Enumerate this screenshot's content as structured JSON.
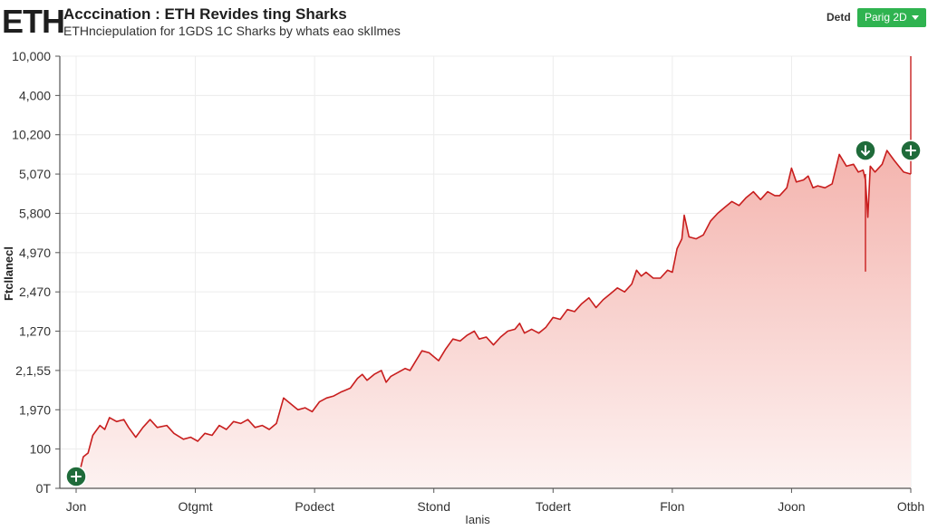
{
  "header": {
    "logo": "ETH",
    "title": "Acccination : ETH Revides ting Sharks",
    "subtitle": "ETHnciepulation for 1GDS 1C Sharks by whats eao skIlmes",
    "detail_label": "Detd",
    "range_button": "Parig 2D"
  },
  "colors": {
    "line": "#c81e1e",
    "fill_top": "#f4b4ae",
    "fill_bottom": "#fdf2f1",
    "marker": "#1f6b3a",
    "button": "#2fb350",
    "grid": "#ececec",
    "axis": "#555555"
  },
  "chart_data": {
    "type": "area",
    "title": "Acccination : ETH Revides ting Sharks",
    "subtitle": "ETHnciepulation for 1GDS 1C Sharks by whats eao skIlmes",
    "ylabel": "Ftcllanecl",
    "xlabel": "Ianis",
    "grid": true,
    "legend": "none",
    "y_tick_labels_bottom_to_top": [
      "0T",
      "100",
      "1,970",
      "2,1,55",
      "1,270",
      "2,470",
      "4,970",
      "5,800",
      "5,070",
      "10,200",
      "4,000",
      "10,000"
    ],
    "x_tick_labels": [
      "Jon",
      "Otgmt",
      "Podect",
      "Stond",
      "Todert",
      "Flon",
      "Joon",
      "Otbh"
    ],
    "value_units": "y in tick-index units (0 = bottom tick '0T', 11 = top tick '10,000'); x in tick-index units (0 = 'Jon', 7 = 'Otbh')",
    "xlim": [
      -0.13,
      7.0
    ],
    "ylim": [
      0,
      11
    ],
    "series": [
      {
        "name": "ETH",
        "points": [
          [
            0.02,
            0.3
          ],
          [
            0.06,
            0.8
          ],
          [
            0.1,
            0.9
          ],
          [
            0.14,
            1.35
          ],
          [
            0.2,
            1.6
          ],
          [
            0.24,
            1.5
          ],
          [
            0.28,
            1.8
          ],
          [
            0.34,
            1.7
          ],
          [
            0.4,
            1.75
          ],
          [
            0.44,
            1.55
          ],
          [
            0.5,
            1.3
          ],
          [
            0.56,
            1.55
          ],
          [
            0.62,
            1.75
          ],
          [
            0.68,
            1.55
          ],
          [
            0.76,
            1.6
          ],
          [
            0.82,
            1.4
          ],
          [
            0.9,
            1.25
          ],
          [
            0.96,
            1.3
          ],
          [
            1.02,
            1.2
          ],
          [
            1.08,
            1.4
          ],
          [
            1.14,
            1.35
          ],
          [
            1.2,
            1.6
          ],
          [
            1.26,
            1.5
          ],
          [
            1.32,
            1.7
          ],
          [
            1.38,
            1.65
          ],
          [
            1.44,
            1.75
          ],
          [
            1.5,
            1.55
          ],
          [
            1.56,
            1.6
          ],
          [
            1.62,
            1.5
          ],
          [
            1.68,
            1.65
          ],
          [
            1.74,
            2.3
          ],
          [
            1.8,
            2.15
          ],
          [
            1.86,
            2.0
          ],
          [
            1.92,
            2.05
          ],
          [
            1.98,
            1.95
          ],
          [
            2.04,
            2.2
          ],
          [
            2.1,
            2.3
          ],
          [
            2.16,
            2.35
          ],
          [
            2.22,
            2.45
          ],
          [
            2.3,
            2.55
          ],
          [
            2.36,
            2.8
          ],
          [
            2.4,
            2.9
          ],
          [
            2.44,
            2.75
          ],
          [
            2.5,
            2.9
          ],
          [
            2.56,
            3.0
          ],
          [
            2.6,
            2.7
          ],
          [
            2.64,
            2.85
          ],
          [
            2.7,
            2.95
          ],
          [
            2.76,
            3.05
          ],
          [
            2.8,
            3.0
          ],
          [
            2.84,
            3.2
          ],
          [
            2.9,
            3.5
          ],
          [
            2.96,
            3.45
          ],
          [
            3.0,
            3.35
          ],
          [
            3.04,
            3.25
          ],
          [
            3.1,
            3.55
          ],
          [
            3.16,
            3.8
          ],
          [
            3.22,
            3.75
          ],
          [
            3.28,
            3.9
          ],
          [
            3.34,
            4.0
          ],
          [
            3.38,
            3.8
          ],
          [
            3.44,
            3.85
          ],
          [
            3.5,
            3.65
          ],
          [
            3.56,
            3.85
          ],
          [
            3.62,
            4.0
          ],
          [
            3.68,
            4.05
          ],
          [
            3.72,
            4.2
          ],
          [
            3.76,
            3.95
          ],
          [
            3.82,
            4.05
          ],
          [
            3.88,
            3.95
          ],
          [
            3.94,
            4.1
          ],
          [
            4.0,
            4.35
          ],
          [
            4.06,
            4.3
          ],
          [
            4.12,
            4.55
          ],
          [
            4.18,
            4.5
          ],
          [
            4.24,
            4.7
          ],
          [
            4.3,
            4.85
          ],
          [
            4.36,
            4.6
          ],
          [
            4.42,
            4.8
          ],
          [
            4.48,
            4.95
          ],
          [
            4.54,
            5.1
          ],
          [
            4.6,
            5.0
          ],
          [
            4.66,
            5.2
          ],
          [
            4.7,
            5.55
          ],
          [
            4.74,
            5.4
          ],
          [
            4.78,
            5.5
          ],
          [
            4.84,
            5.35
          ],
          [
            4.9,
            5.35
          ],
          [
            4.96,
            5.55
          ],
          [
            5.0,
            5.5
          ],
          [
            5.04,
            6.1
          ],
          [
            5.08,
            6.35
          ],
          [
            5.1,
            6.95
          ],
          [
            5.14,
            6.4
          ],
          [
            5.2,
            6.35
          ],
          [
            5.26,
            6.45
          ],
          [
            5.32,
            6.8
          ],
          [
            5.38,
            7.0
          ],
          [
            5.44,
            7.15
          ],
          [
            5.5,
            7.3
          ],
          [
            5.56,
            7.2
          ],
          [
            5.62,
            7.4
          ],
          [
            5.68,
            7.55
          ],
          [
            5.74,
            7.35
          ],
          [
            5.8,
            7.55
          ],
          [
            5.86,
            7.45
          ],
          [
            5.9,
            7.45
          ],
          [
            5.96,
            7.65
          ],
          [
            6.0,
            8.15
          ],
          [
            6.04,
            7.8
          ],
          [
            6.1,
            7.85
          ],
          [
            6.14,
            7.95
          ],
          [
            6.18,
            7.65
          ],
          [
            6.22,
            7.7
          ],
          [
            6.28,
            7.65
          ],
          [
            6.34,
            7.75
          ],
          [
            6.4,
            8.5
          ],
          [
            6.46,
            8.2
          ],
          [
            6.52,
            8.25
          ],
          [
            6.56,
            8.05
          ],
          [
            6.6,
            8.1
          ],
          [
            6.62,
            7.85
          ],
          [
            6.64,
            6.9
          ],
          [
            6.66,
            8.2
          ],
          [
            6.7,
            8.05
          ],
          [
            6.76,
            8.25
          ],
          [
            6.8,
            8.6
          ],
          [
            6.86,
            8.35
          ],
          [
            6.9,
            8.2
          ],
          [
            6.94,
            8.05
          ],
          [
            7.0,
            8.0
          ]
        ]
      }
    ],
    "annotations": [
      {
        "type": "buy-marker",
        "icon": "plus",
        "x": 0.0,
        "y": 0.3
      },
      {
        "type": "sell-marker",
        "icon": "arrow-down",
        "x": 6.62,
        "y": 8.6
      },
      {
        "type": "buy-marker",
        "icon": "plus",
        "x": 7.0,
        "y": 8.6
      }
    ]
  }
}
